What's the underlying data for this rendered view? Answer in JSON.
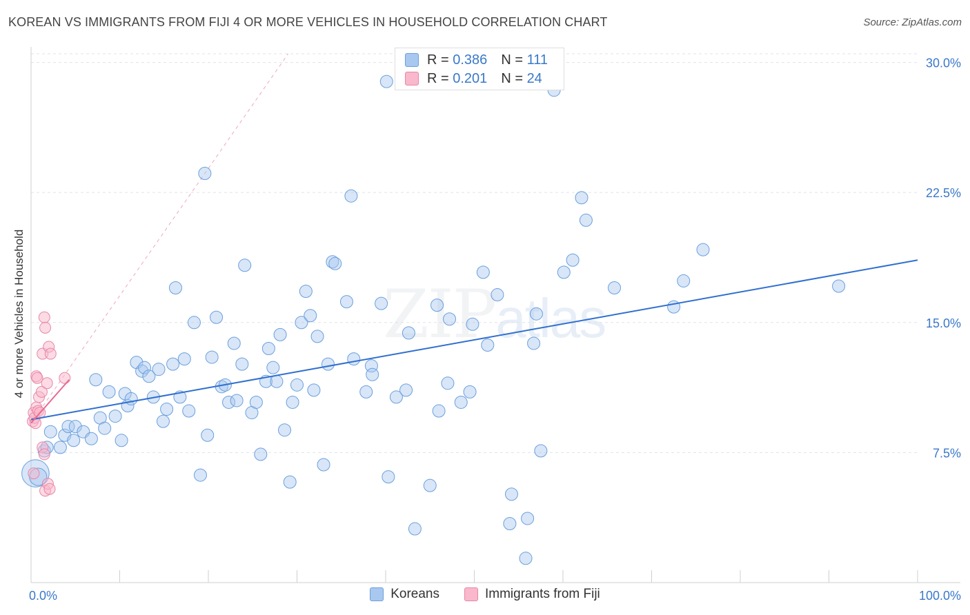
{
  "title": "KOREAN VS IMMIGRANTS FROM FIJI 4 OR MORE VEHICLES IN HOUSEHOLD CORRELATION CHART",
  "source": "Source: ZipAtlas.com",
  "watermark": {
    "zip": "ZIP",
    "atlas": "atlas"
  },
  "legend_top": {
    "rows": [
      {
        "r_label": "R =",
        "r_value": "0.386",
        "n_label": "N =",
        "n_value": "111",
        "color": "#a9c8f0",
        "border": "#6a9fdc"
      },
      {
        "r_label": "R =",
        "r_value": "0.201",
        "n_label": "N =",
        "n_value": "24",
        "color": "#f9b8cc",
        "border": "#e886a6"
      }
    ]
  },
  "bottom_legend": [
    {
      "label": "Koreans",
      "color": "#a9c8f0",
      "border": "#6a9fdc"
    },
    {
      "label": "Immigrants from Fiji",
      "color": "#f9b8cc",
      "border": "#e886a6"
    }
  ],
  "chart_data": {
    "type": "scatter",
    "title": "KOREAN VS IMMIGRANTS FROM FIJI 4 OR MORE VEHICLES IN HOUSEHOLD CORRELATION CHART",
    "xlabel": "",
    "ylabel": "4 or more Vehicles in Household",
    "xlim": [
      0,
      100
    ],
    "ylim": [
      0,
      30.5
    ],
    "x_tick_labels": [
      "0.0%",
      "100.0%"
    ],
    "y_ticks": [
      7.5,
      15.0,
      22.5,
      30.0
    ],
    "y_tick_labels": [
      "7.5%",
      "15.0%",
      "22.5%",
      "30.0%"
    ],
    "grid": true,
    "colors": {
      "koreans": "#6a9fdc",
      "koreans_fill": "#a9c8f0",
      "fiji": "#e886a6",
      "fiji_fill": "#f9b8cc",
      "trend_blue": "#2f6fcf",
      "trend_pink": "#e8688f",
      "axis_label": "#3a78c9"
    },
    "series": [
      {
        "name": "Koreans",
        "R": 0.386,
        "N": 111,
        "trend": {
          "x": [
            0,
            100
          ],
          "y": [
            9.4,
            18.6
          ]
        },
        "points": [
          [
            0.5,
            6.3,
            2.2
          ],
          [
            0.8,
            6.1,
            1.4
          ],
          [
            1.5,
            7.6,
            1
          ],
          [
            1.8,
            7.8,
            1
          ],
          [
            2.2,
            8.7,
            1
          ],
          [
            3.3,
            7.8,
            1
          ],
          [
            3.8,
            8.5,
            1
          ],
          [
            4.2,
            9.0,
            1
          ],
          [
            4.8,
            8.2,
            1
          ],
          [
            5.0,
            9.0,
            1
          ],
          [
            5.9,
            8.7,
            1
          ],
          [
            6.8,
            8.3,
            1
          ],
          [
            7.3,
            11.7,
            1
          ],
          [
            7.8,
            9.5,
            1
          ],
          [
            8.3,
            8.9,
            1
          ],
          [
            8.8,
            11.0,
            1
          ],
          [
            9.5,
            9.6,
            1
          ],
          [
            10.2,
            8.2,
            1
          ],
          [
            10.6,
            10.9,
            1
          ],
          [
            10.9,
            10.2,
            1
          ],
          [
            11.3,
            10.6,
            1
          ],
          [
            11.9,
            12.7,
            1
          ],
          [
            12.5,
            12.2,
            1
          ],
          [
            12.8,
            12.4,
            1
          ],
          [
            13.3,
            11.9,
            1
          ],
          [
            13.8,
            10.7,
            1
          ],
          [
            14.4,
            12.3,
            1
          ],
          [
            14.9,
            9.3,
            1
          ],
          [
            15.3,
            10.0,
            1
          ],
          [
            16.0,
            12.6,
            1
          ],
          [
            16.3,
            17.0,
            1
          ],
          [
            16.8,
            10.7,
            1
          ],
          [
            17.3,
            12.9,
            1
          ],
          [
            17.8,
            9.9,
            1
          ],
          [
            18.4,
            15.0,
            1
          ],
          [
            19.1,
            6.2,
            1
          ],
          [
            19.6,
            23.6,
            1
          ],
          [
            19.9,
            8.5,
            1
          ],
          [
            20.4,
            13.0,
            1
          ],
          [
            20.9,
            15.3,
            1
          ],
          [
            21.5,
            11.3,
            1
          ],
          [
            21.9,
            11.4,
            1
          ],
          [
            22.3,
            10.4,
            1
          ],
          [
            22.9,
            13.8,
            1
          ],
          [
            23.2,
            10.5,
            1
          ],
          [
            23.8,
            12.6,
            1
          ],
          [
            24.1,
            18.3,
            1
          ],
          [
            24.9,
            9.8,
            1
          ],
          [
            25.4,
            10.4,
            1
          ],
          [
            25.9,
            7.4,
            1
          ],
          [
            26.5,
            11.6,
            1
          ],
          [
            26.8,
            13.5,
            1
          ],
          [
            27.3,
            12.4,
            1
          ],
          [
            27.7,
            11.6,
            1
          ],
          [
            28.1,
            14.3,
            1
          ],
          [
            28.6,
            8.8,
            1
          ],
          [
            29.2,
            5.8,
            1
          ],
          [
            29.5,
            10.4,
            1
          ],
          [
            30.0,
            11.4,
            1
          ],
          [
            30.5,
            15.0,
            1
          ],
          [
            31.0,
            16.8,
            1
          ],
          [
            31.5,
            15.4,
            1
          ],
          [
            31.9,
            11.1,
            1
          ],
          [
            32.3,
            14.2,
            1
          ],
          [
            33.0,
            6.8,
            1
          ],
          [
            33.5,
            12.6,
            1
          ],
          [
            34.0,
            18.5,
            1
          ],
          [
            34.3,
            18.4,
            1
          ],
          [
            35.6,
            16.2,
            1
          ],
          [
            36.1,
            22.3,
            1
          ],
          [
            36.4,
            12.9,
            1
          ],
          [
            37.8,
            11.0,
            1
          ],
          [
            38.4,
            12.5,
            1
          ],
          [
            38.5,
            12.0,
            1
          ],
          [
            39.5,
            16.1,
            1
          ],
          [
            40.1,
            28.9,
            1
          ],
          [
            40.3,
            6.1,
            1
          ],
          [
            41.2,
            10.7,
            1
          ],
          [
            42.3,
            11.1,
            1
          ],
          [
            42.6,
            14.4,
            1
          ],
          [
            43.3,
            3.1,
            1
          ],
          [
            45.0,
            5.6,
            1
          ],
          [
            45.8,
            16.0,
            1
          ],
          [
            46.0,
            9.9,
            1
          ],
          [
            47.0,
            11.5,
            1
          ],
          [
            47.2,
            15.2,
            1
          ],
          [
            48.5,
            10.4,
            1
          ],
          [
            49.5,
            11.0,
            1
          ],
          [
            49.8,
            14.9,
            1
          ],
          [
            51.0,
            17.9,
            1
          ],
          [
            51.5,
            13.7,
            1
          ],
          [
            52.6,
            16.6,
            1
          ],
          [
            54.0,
            3.4,
            1
          ],
          [
            54.2,
            5.1,
            1
          ],
          [
            55.8,
            1.4,
            1
          ],
          [
            56.0,
            3.7,
            1
          ],
          [
            56.7,
            13.8,
            1
          ],
          [
            57.0,
            15.5,
            1
          ],
          [
            57.5,
            7.6,
            1
          ],
          [
            59.0,
            28.4,
            1
          ],
          [
            60.1,
            17.9,
            1
          ],
          [
            61.1,
            18.6,
            1
          ],
          [
            62.1,
            22.2,
            1
          ],
          [
            62.6,
            20.9,
            1
          ],
          [
            65.8,
            17.0,
            1
          ],
          [
            72.5,
            15.9,
            1
          ],
          [
            73.6,
            17.4,
            1
          ],
          [
            75.8,
            19.2,
            1
          ],
          [
            91.1,
            17.1,
            1
          ]
        ]
      },
      {
        "name": "Immigrants from Fiji",
        "R": 0.201,
        "N": 24,
        "trend": {
          "x": [
            0,
            4.3
          ],
          "y": [
            9.2,
            11.7
          ]
        },
        "trend_dashed": {
          "x": [
            0,
            29
          ],
          "y": [
            9.2,
            30.5
          ]
        },
        "points": [
          [
            0.2,
            9.3,
            1
          ],
          [
            0.3,
            9.8,
            1
          ],
          [
            0.4,
            9.5,
            1
          ],
          [
            0.5,
            9.2,
            1
          ],
          [
            0.6,
            10.1,
            1
          ],
          [
            0.8,
            9.9,
            1
          ],
          [
            0.9,
            10.7,
            1
          ],
          [
            1.0,
            9.8,
            1
          ],
          [
            1.2,
            11.0,
            1
          ],
          [
            0.6,
            11.9,
            1
          ],
          [
            1.3,
            13.2,
            1
          ],
          [
            1.5,
            15.3,
            1
          ],
          [
            1.6,
            14.7,
            1
          ],
          [
            1.8,
            11.5,
            1
          ],
          [
            2.0,
            13.6,
            1
          ],
          [
            2.2,
            13.2,
            1
          ],
          [
            1.3,
            7.8,
            1
          ],
          [
            1.5,
            7.4,
            1
          ],
          [
            1.6,
            5.3,
            1
          ],
          [
            1.9,
            5.7,
            1
          ],
          [
            2.1,
            5.4,
            1
          ],
          [
            0.3,
            6.3,
            1
          ],
          [
            3.8,
            11.8,
            1
          ],
          [
            0.7,
            11.8,
            1
          ]
        ]
      }
    ]
  }
}
